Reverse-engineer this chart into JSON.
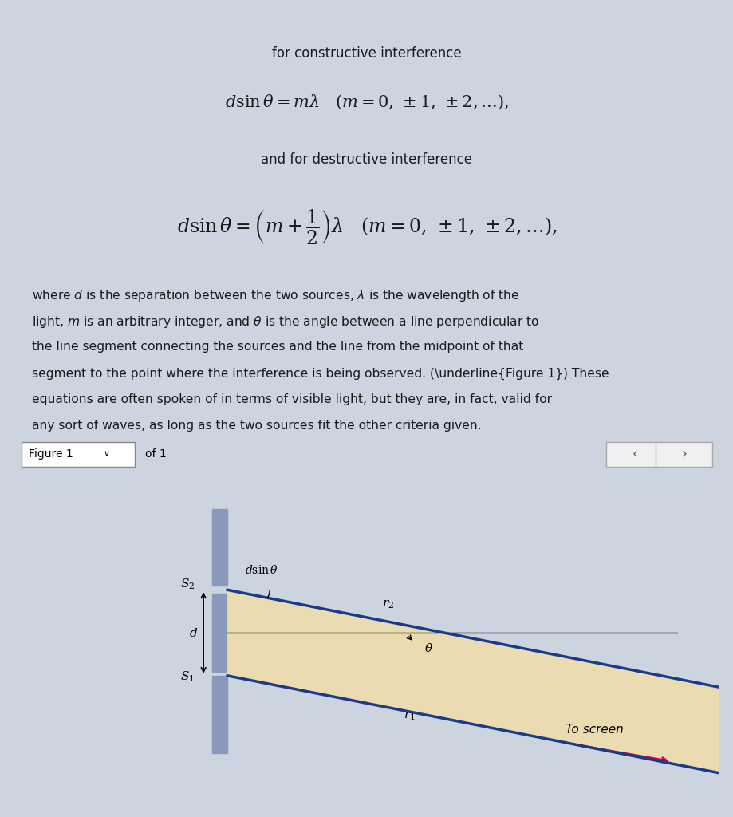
{
  "bg_color": "#e8eef5",
  "top_bg": "#dde6f0",
  "fig_bg": "#dde6f0",
  "border_color": "#a0b0c8",
  "text_color": "#1a1a1a",
  "blue_line_color": "#1a3a8a",
  "arrow_color": "#cc0044",
  "tan_fill": "#f5dfa0",
  "slit_color": "#8899bb",
  "figure1_label": "Figure 1",
  "of1_label": "of 1",
  "line1_formula": "$d\\sin\\theta = m\\lambda \\quad (m = 0, \\pm1, \\pm2,\\ldots),$",
  "line_constructive": "for constructive interference",
  "line_destructive": "and for destructive interference",
  "line2_formula": "$d\\sin\\theta = \\left(m + \\dfrac{1}{2}\\right)\\lambda \\quad (m = 0, \\pm1, \\pm2,\\ldots),$",
  "paragraph": "where $d$ is the separation between the two sources, $\\lambda$ is the wavelength of the\nlight, $m$ is an arbitrary integer, and $\\theta$ is the angle between a line perpendicular to\nthe line segment connecting the sources and the line from the midpoint of that\nsegment to the point where the interference is being observed. (Figure 1) These\nequations are often spoken of in terms of visible light, but they are, in fact, valid for\nany sort of waves, as long as the two sources fit the other criteria given."
}
